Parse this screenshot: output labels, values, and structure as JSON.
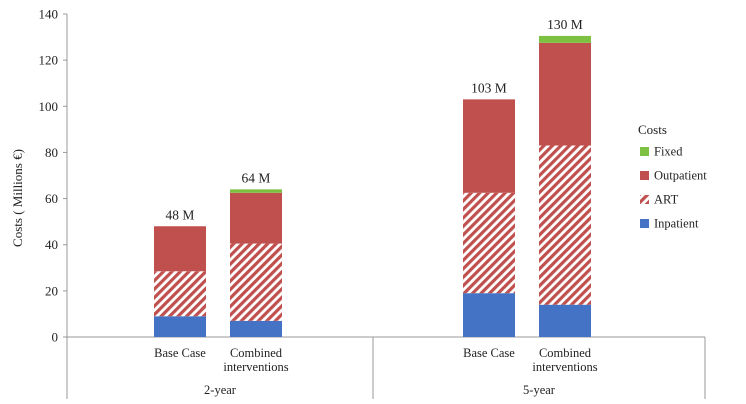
{
  "chart_data": {
    "type": "bar",
    "stacked": true,
    "ylabel": "Costs ( Millions €)",
    "ylim": [
      0,
      140
    ],
    "yticks": [
      0,
      20,
      40,
      60,
      80,
      100,
      120,
      140
    ],
    "groups": [
      {
        "label": "2-year",
        "bars": [
          {
            "label": "Base Case",
            "total_label": "48 M",
            "values": {
              "Inpatient": 9,
              "ART": 19.5,
              "Outpatient": 19.5,
              "Fixed": 0
            }
          },
          {
            "label": "Combined\ninterventions",
            "total_label": "64 M",
            "values": {
              "Inpatient": 7,
              "ART": 33.5,
              "Outpatient": 22,
              "Fixed": 1.5
            }
          }
        ]
      },
      {
        "label": "5-year",
        "bars": [
          {
            "label": "Base Case",
            "total_label": "103 M",
            "values": {
              "Inpatient": 19,
              "ART": 43.5,
              "Outpatient": 40.5,
              "Fixed": 0
            }
          },
          {
            "label": "Combined\ninterventions",
            "total_label": "130 M",
            "values": {
              "Inpatient": 14,
              "ART": 69,
              "Outpatient": 44.5,
              "Fixed": 3
            }
          }
        ]
      }
    ],
    "series": [
      {
        "name": "Inpatient",
        "color": "#4472c4",
        "pattern": "solid"
      },
      {
        "name": "ART",
        "color": "#c0504d",
        "pattern": "diagonal-stripes"
      },
      {
        "name": "Outpatient",
        "color": "#c0504d",
        "pattern": "solid"
      },
      {
        "name": "Fixed",
        "color": "#7dc142",
        "pattern": "solid"
      }
    ],
    "legend": {
      "title": "Costs",
      "position": "right",
      "order": [
        "Fixed",
        "Outpatient",
        "ART",
        "Inpatient"
      ]
    },
    "grid": false
  }
}
